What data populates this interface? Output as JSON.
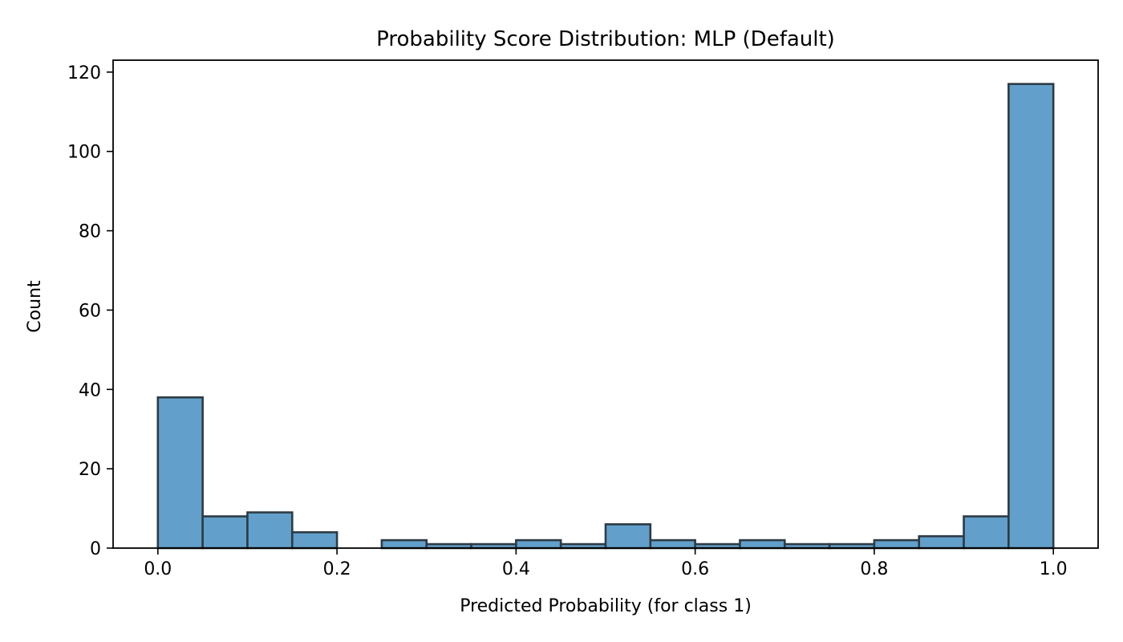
{
  "chart_data": {
    "type": "bar",
    "title": "Probability Score Distribution: MLP (Default)",
    "xlabel": "Predicted Probability (for class 1)",
    "ylabel": "Count",
    "bin_edges": [
      0.0,
      0.05,
      0.1,
      0.15,
      0.2,
      0.25,
      0.3,
      0.35,
      0.4,
      0.45,
      0.5,
      0.55,
      0.6,
      0.65,
      0.7,
      0.75,
      0.8,
      0.85,
      0.9,
      0.95,
      1.0
    ],
    "values": [
      38,
      8,
      9,
      4,
      0,
      2,
      1,
      1,
      2,
      1,
      6,
      2,
      1,
      2,
      1,
      1,
      2,
      3,
      8,
      117
    ],
    "xlim": [
      -0.05,
      1.05
    ],
    "ylim": [
      0,
      123
    ],
    "xticks": [
      0.0,
      0.2,
      0.4,
      0.6,
      0.8,
      1.0
    ],
    "xtick_labels": [
      "0.0",
      "0.2",
      "0.4",
      "0.6",
      "0.8",
      "1.0"
    ],
    "yticks": [
      0,
      20,
      40,
      60,
      80,
      100,
      120
    ],
    "ytick_labels": [
      "0",
      "20",
      "40",
      "60",
      "80",
      "100",
      "120"
    ],
    "grid": false,
    "bar_color": "#62a0cb",
    "edge_color": "#2e3b44"
  }
}
